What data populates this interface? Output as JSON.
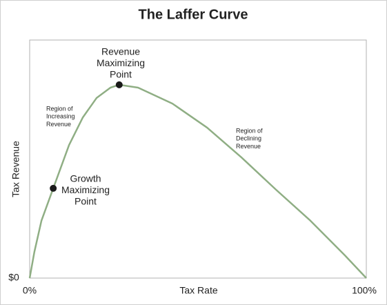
{
  "chart_data": {
    "type": "line",
    "title": "The Laffer Curve",
    "x_label": "Tax Rate",
    "y_label": "Tax Revenue",
    "x": [
      0,
      1.4,
      3.5,
      7.0,
      11.7,
      15.8,
      19.9,
      24.0,
      26.6,
      32.2,
      42.4,
      52.7,
      62.9,
      73.2,
      83.4,
      93.6,
      100
    ],
    "series": [
      {
        "color": "#8fae84",
        "values": [
          0,
          11.0,
          24.1,
          37.7,
          55.9,
          67.5,
          75.7,
          80.0,
          81.2,
          80.0,
          73.3,
          63.2,
          50.7,
          37.1,
          24.1,
          9.6,
          0
        ]
      }
    ],
    "xlim": [
      0,
      100
    ],
    "ylim": [
      0,
      100
    ],
    "xticks": [
      {
        "value": 0,
        "label": "0%"
      },
      {
        "value": 100,
        "label": "100%"
      }
    ],
    "yticks": [
      {
        "value": 0,
        "label": "$0"
      }
    ],
    "grid": false,
    "points": [
      {
        "x": 7.0,
        "y": 37.7,
        "color": "#1a1a1a",
        "label": [
          "Growth",
          "Maximizing",
          "Point"
        ]
      },
      {
        "x": 26.6,
        "y": 81.2,
        "color": "#1a1a1a",
        "label": [
          "Revenue",
          "Maximizing",
          "Point"
        ]
      }
    ],
    "annotations": [
      [
        "Region of",
        "Increasing",
        "Revenue"
      ],
      [
        "Region of",
        "Declining",
        "Revenue"
      ]
    ]
  }
}
